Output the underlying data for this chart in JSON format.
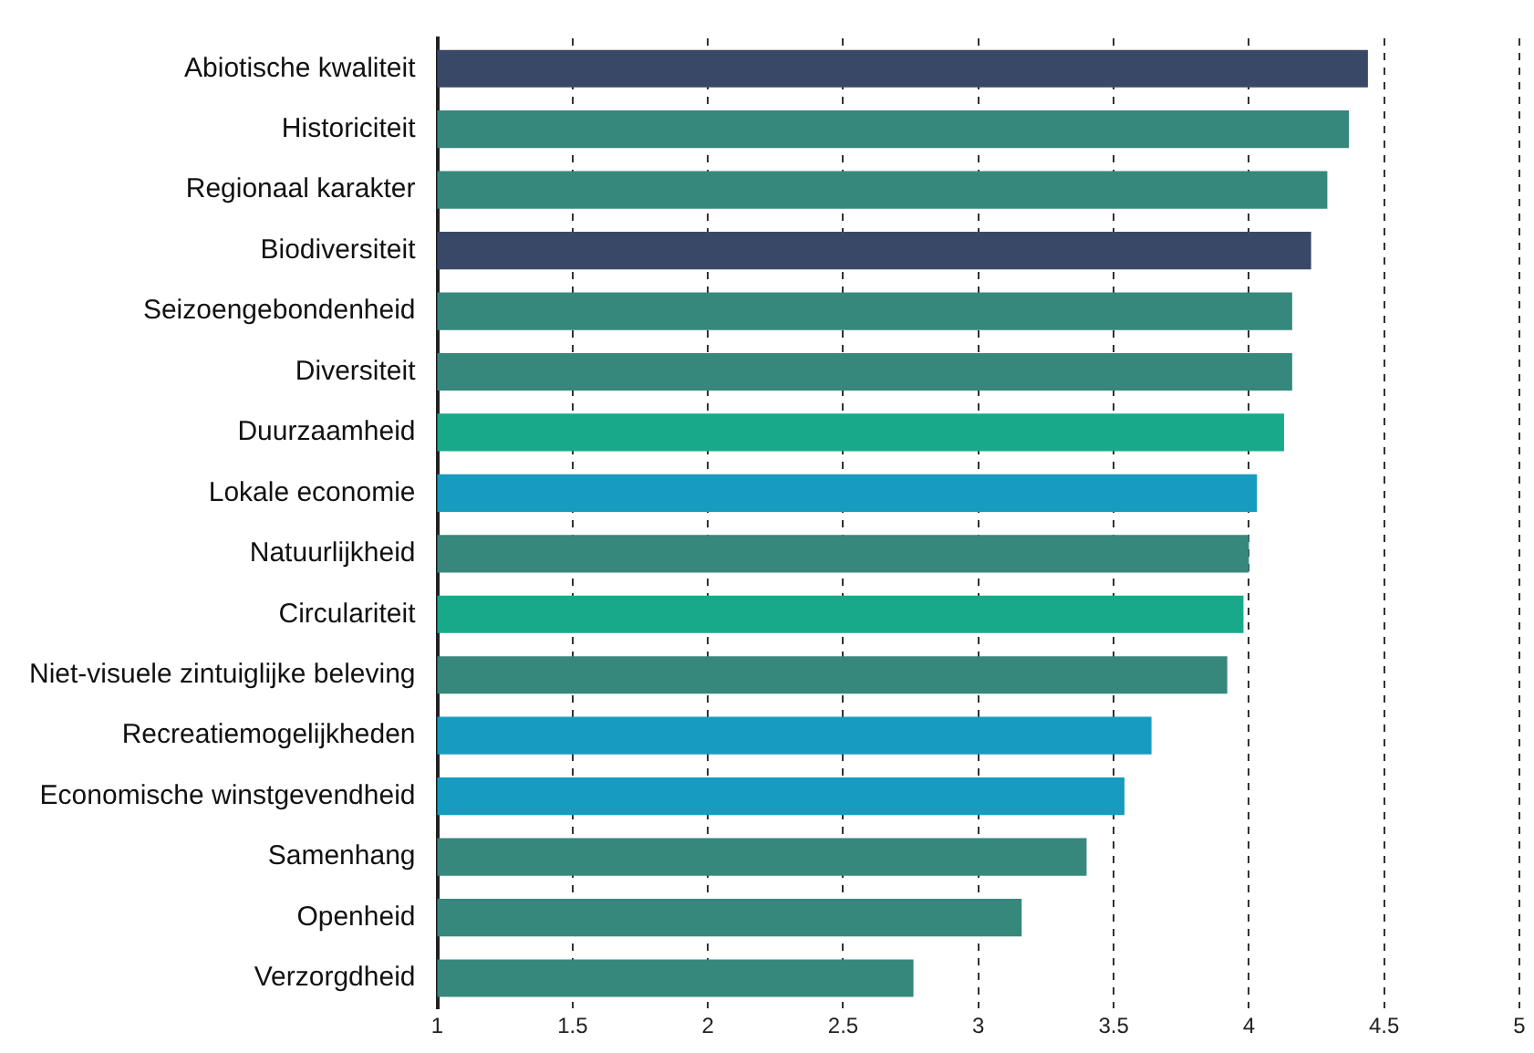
{
  "chart_data": {
    "type": "bar",
    "orientation": "horizontal",
    "categories": [
      "Abiotische kwaliteit",
      "Historiciteit",
      "Regionaal karakter",
      "Biodiversiteit",
      "Seizoengebondenheid",
      "Diversiteit",
      "Duurzaamheid",
      "Lokale economie",
      "Natuurlijkheid",
      "Circulariteit",
      "Niet-visuele zintuiglijke beleving",
      "Recreatiemogelijkheden",
      "Economische winstgevendheid",
      "Samenhang",
      "Openheid",
      "Verzorgdheid"
    ],
    "values": [
      4.44,
      4.37,
      4.29,
      4.23,
      4.16,
      4.16,
      4.13,
      4.03,
      4.0,
      3.98,
      3.92,
      3.64,
      3.54,
      3.4,
      3.16,
      2.76
    ],
    "colors": [
      "#3a4868",
      "#36877c",
      "#36877c",
      "#3a4868",
      "#36877c",
      "#36877c",
      "#17a98a",
      "#179bbf",
      "#36877c",
      "#17a98a",
      "#36877c",
      "#179bbf",
      "#179bbf",
      "#36877c",
      "#36877c",
      "#36877c"
    ],
    "xlim": [
      1,
      5
    ],
    "xticks": [
      1,
      1.5,
      2,
      2.5,
      3,
      3.5,
      4,
      4.5,
      5
    ],
    "grid": "x"
  }
}
